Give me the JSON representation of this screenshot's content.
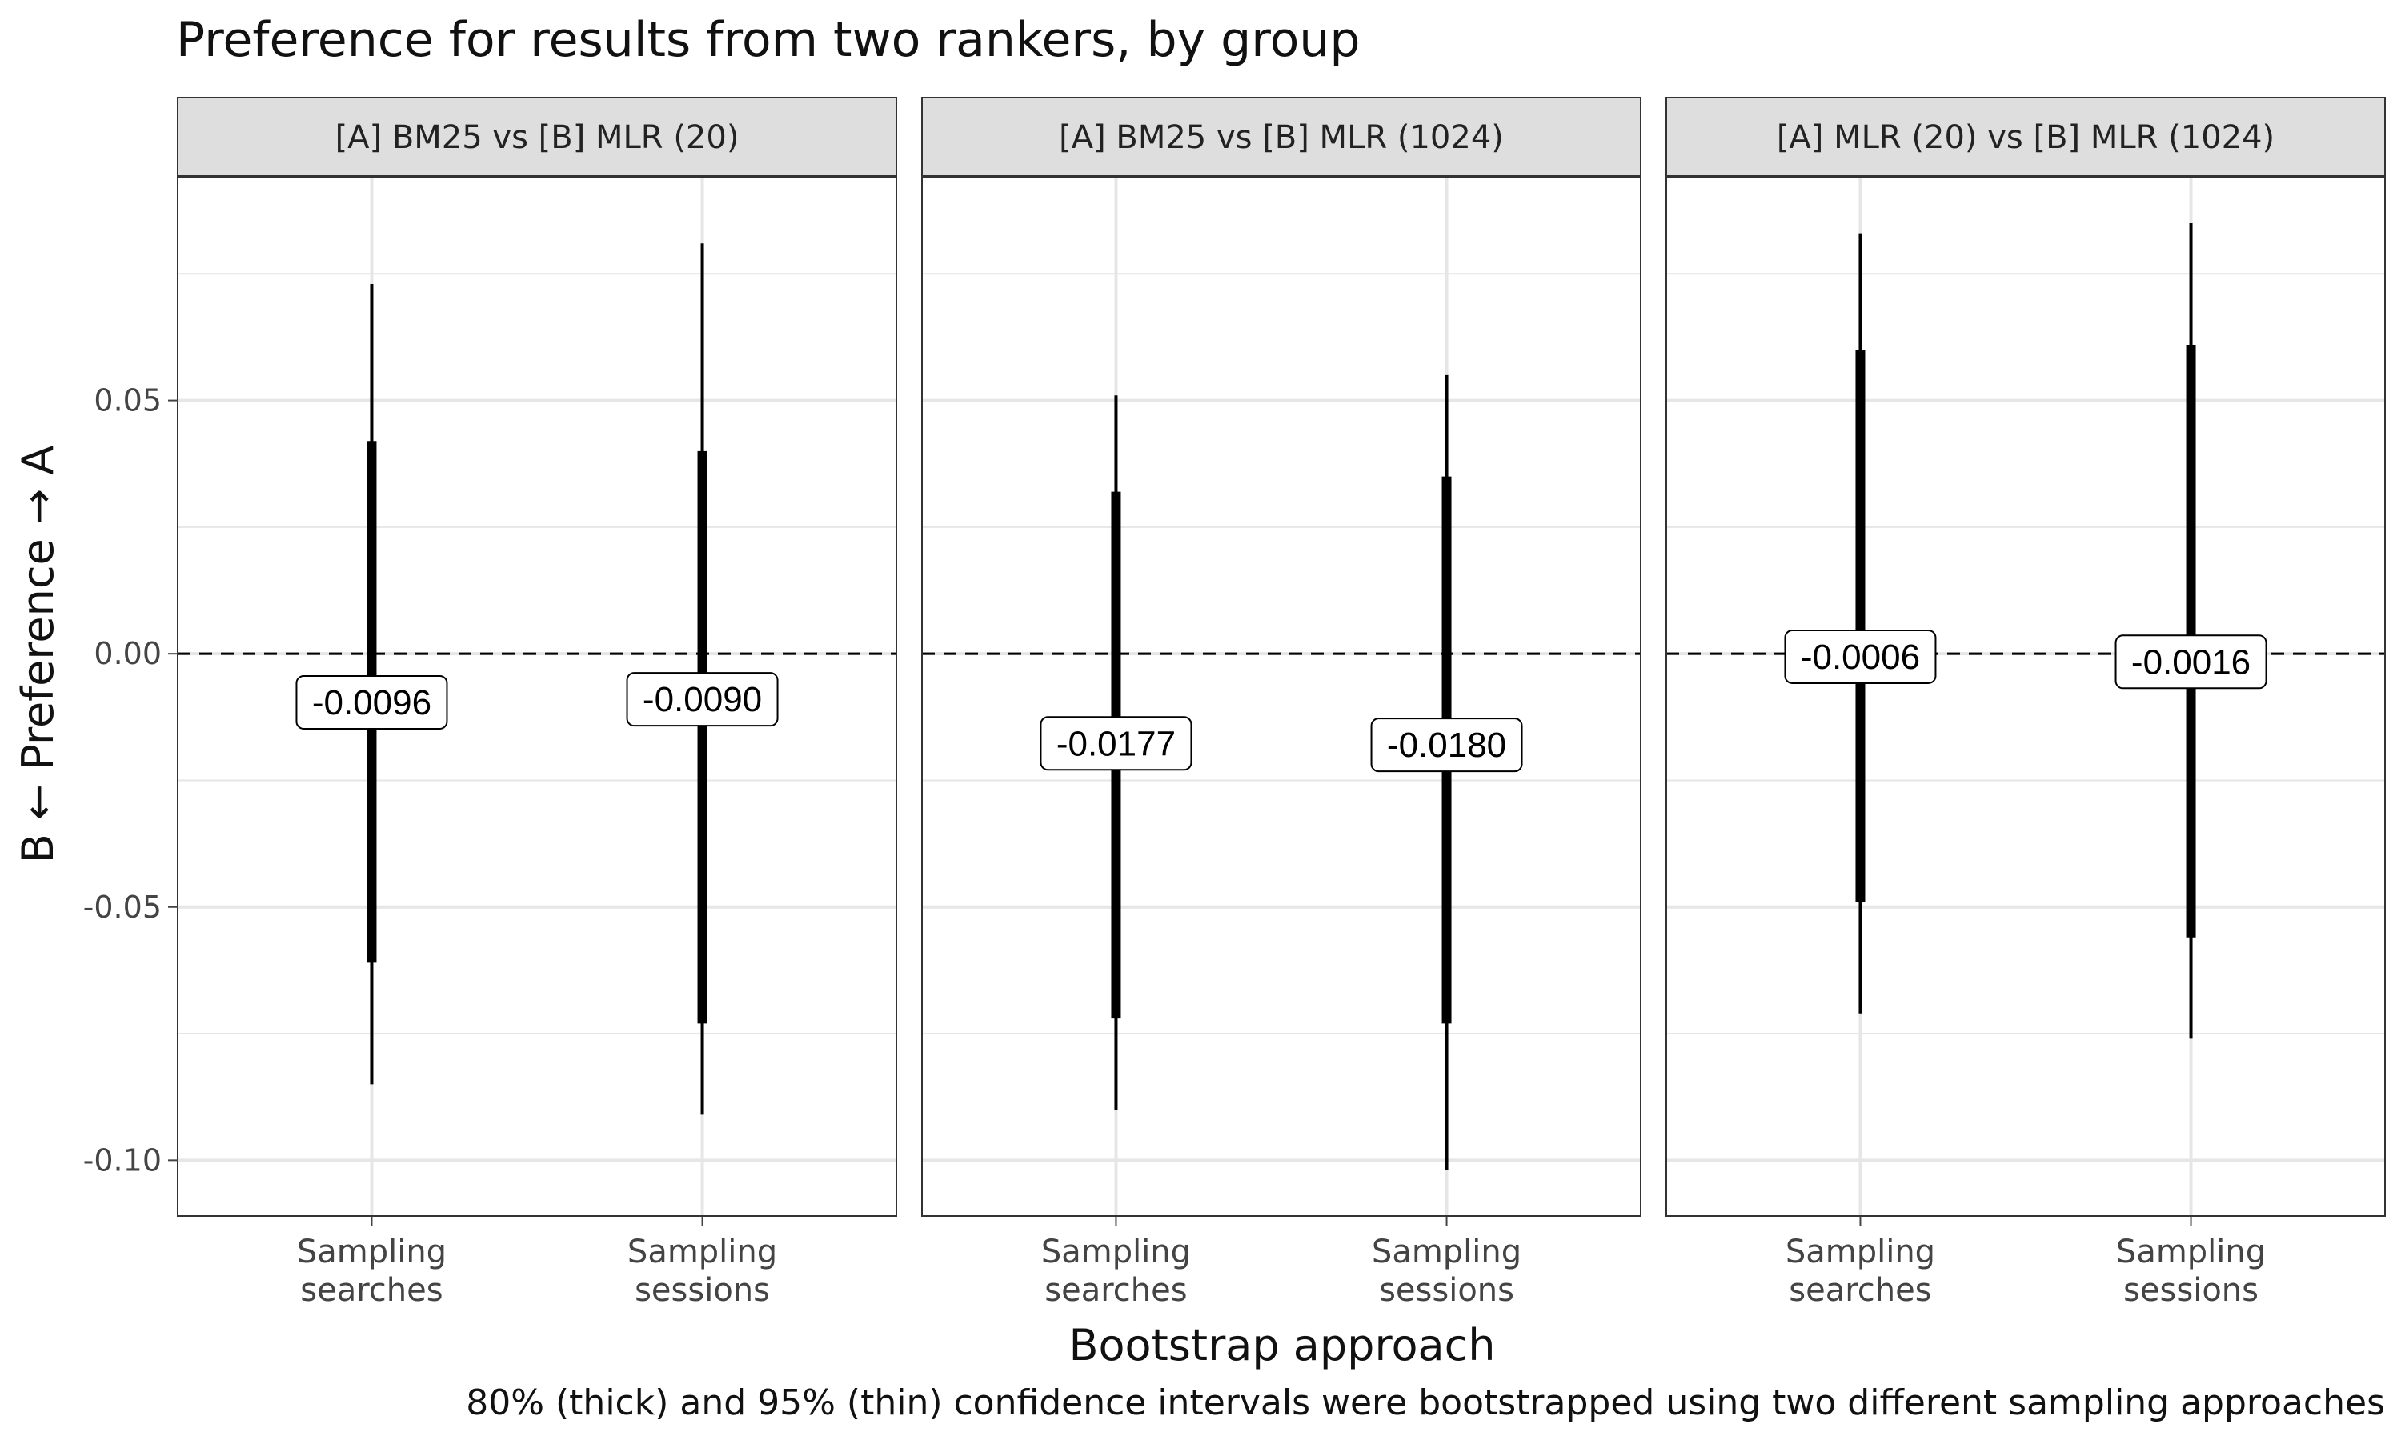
{
  "chart_data": {
    "type": "errorbar-facets",
    "title": "Preference for results from two rankers, by group",
    "xlabel": "Bootstrap approach",
    "ylabel": "B ← Preference → A",
    "caption": "80% (thick) and 95% (thin) confidence intervals were bootstrapped using two different sampling approaches",
    "ylim": [
      -0.111,
      0.094
    ],
    "yticks": [
      0.05,
      0.0,
      -0.05,
      -0.1
    ],
    "ytick_labels": [
      "0.05",
      "0.00",
      "-0.05",
      "-0.10"
    ],
    "reference_line": 0,
    "grid": true,
    "categories": [
      [
        "Sampling",
        "searches"
      ],
      [
        "Sampling",
        "sessions"
      ]
    ],
    "facets": [
      {
        "label": "[A] BM25 vs [B] MLR (20)",
        "points": [
          {
            "estimate": -0.0096,
            "label": "-0.0096",
            "ci80": [
              -0.061,
              0.042
            ],
            "ci95": [
              -0.085,
              0.073
            ]
          },
          {
            "estimate": -0.009,
            "label": "-0.0090",
            "ci80": [
              -0.073,
              0.04
            ],
            "ci95": [
              -0.091,
              0.081
            ]
          }
        ]
      },
      {
        "label": "[A] BM25 vs [B] MLR (1024)",
        "points": [
          {
            "estimate": -0.0177,
            "label": "-0.0177",
            "ci80": [
              -0.072,
              0.032
            ],
            "ci95": [
              -0.09,
              0.051
            ]
          },
          {
            "estimate": -0.018,
            "label": "-0.0180",
            "ci80": [
              -0.073,
              0.035
            ],
            "ci95": [
              -0.102,
              0.055
            ]
          }
        ]
      },
      {
        "label": "[A] MLR (20) vs [B] MLR (1024)",
        "points": [
          {
            "estimate": -0.0006,
            "label": "-0.0006",
            "ci80": [
              -0.049,
              0.06
            ],
            "ci95": [
              -0.071,
              0.083
            ]
          },
          {
            "estimate": -0.0016,
            "label": "-0.0016",
            "ci80": [
              -0.056,
              0.061
            ],
            "ci95": [
              -0.076,
              0.085
            ]
          }
        ]
      }
    ]
  },
  "colors": {
    "ink": "#000000",
    "strip_fill": "#dedede",
    "grid": "#e6e6e6",
    "panel_border": "#333333"
  }
}
